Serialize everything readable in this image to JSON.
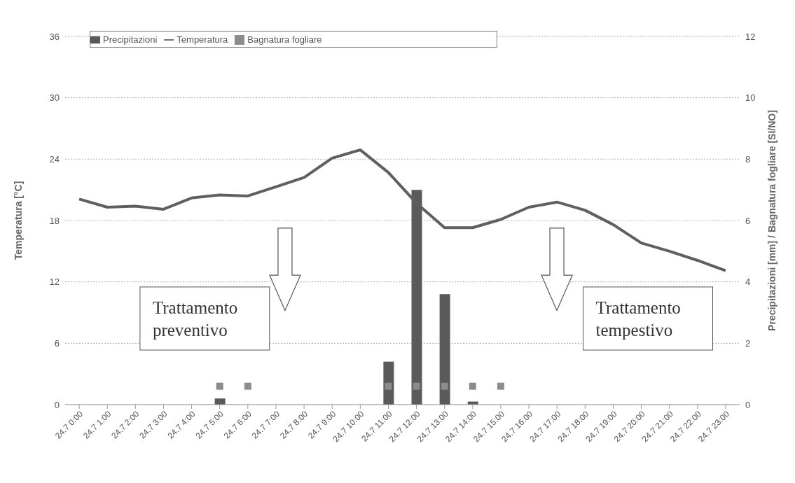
{
  "chart_data": {
    "type": "bar",
    "categories": [
      "24.7 0:00",
      "24.7 1:00",
      "24.7 2:00",
      "24.7 3:00",
      "24.7 4:00",
      "24.7 5:00",
      "24.7 6:00",
      "24.7 7:00",
      "24.7 8:00",
      "24.7 9:00",
      "24.7 10:00",
      "24.7 11:00",
      "24.7 12:00",
      "24.7 13:00",
      "24.7 14:00",
      "24.7 15:00",
      "24.7 16:00",
      "24.7 17:00",
      "24.7 18:00",
      "24.7 19:00",
      "24.7 20:00",
      "24.7 21:00",
      "24.7 22:00",
      "24.7 23:00"
    ],
    "series": [
      {
        "name": "Precipitazioni",
        "axis": "y2",
        "color": "#5a5a5a",
        "values": [
          0,
          0,
          0,
          0,
          0,
          0.2,
          0,
          0,
          0,
          0,
          0,
          1.4,
          7.0,
          3.6,
          0.1,
          0,
          0,
          0,
          0,
          0,
          0,
          0,
          0,
          0
        ]
      },
      {
        "name": "Temperatura",
        "type": "line",
        "color": "#5f5f5f",
        "marker": "none",
        "values": [
          20.1,
          19.3,
          19.4,
          19.1,
          20.2,
          20.5,
          20.4,
          21.3,
          22.2,
          24.1,
          24.9,
          22.7,
          19.7,
          17.3,
          17.3,
          18.1,
          19.3,
          19.8,
          19.0,
          17.6,
          15.8,
          15.0,
          14.1,
          13.1
        ]
      },
      {
        "name": "Bagnatura fogliare",
        "type": "scatter",
        "axis": "y2",
        "color": "#8c8c8c",
        "marker": "square",
        "values": [
          null,
          null,
          null,
          null,
          null,
          0.6,
          0.6,
          null,
          null,
          null,
          null,
          0.6,
          0.6,
          0.6,
          0.6,
          0.6,
          null,
          null,
          null,
          null,
          null,
          null,
          null,
          null
        ]
      }
    ],
    "ylabel": "Temperatura [°C]",
    "y2label": "Precipitazioni [mm] / Bagnatura fogliare [SI/NO]",
    "ylim": [
      0,
      36
    ],
    "yticks": [
      0,
      6,
      12,
      18,
      24,
      30,
      36
    ],
    "y2lim": [
      0,
      12
    ],
    "y2ticks": [
      0,
      2,
      4,
      6,
      8,
      10,
      12
    ],
    "grid": "y",
    "legend": "top left",
    "annotations": [
      "Trattamento preventivo",
      "Trattamento tempestivo"
    ]
  }
}
